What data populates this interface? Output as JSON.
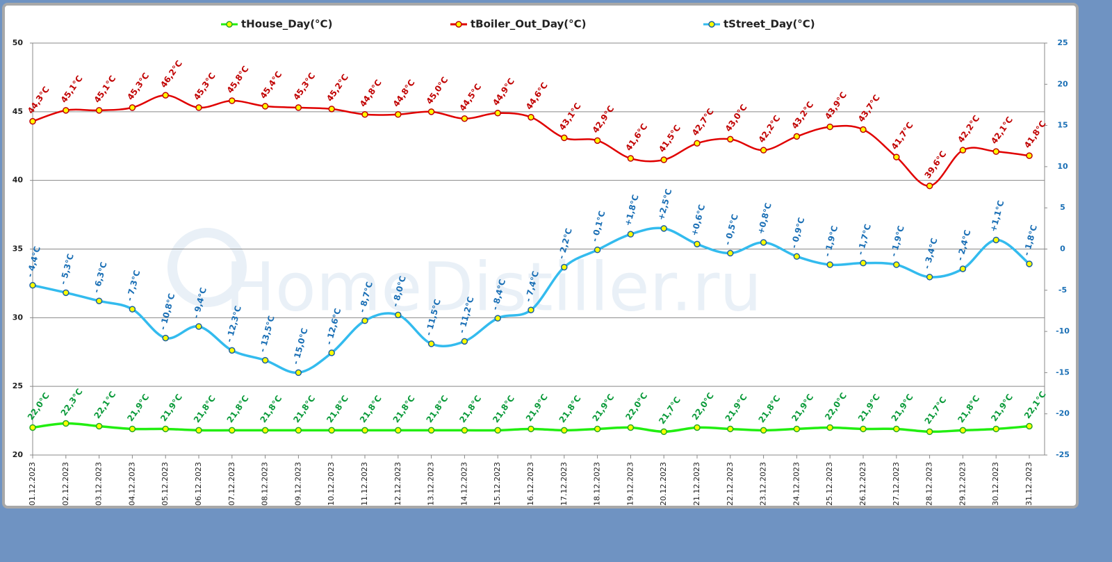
{
  "chart_data": {
    "type": "line",
    "watermark": "HomeDistiller.ru",
    "categories": [
      "01.12.2023",
      "02.12.2023",
      "03.12.2023",
      "04.12.2023",
      "05.12.2023",
      "06.12.2023",
      "07.12.2023",
      "08.12.2023",
      "09.12.2023",
      "10.12.2023",
      "11.12.2023",
      "12.12.2023",
      "13.12.2023",
      "14.12.2023",
      "15.12.2023",
      "16.12.2023",
      "17.12.2023",
      "18.12.2023",
      "19.12.2023",
      "20.12.2023",
      "21.12.2023",
      "22.12.2023",
      "23.12.2023",
      "24.12.2023",
      "25.12.2023",
      "26.12.2023",
      "27.12.2023",
      "28.12.2023",
      "29.12.2023",
      "30.12.2023",
      "31.12.2023"
    ],
    "ylim": [
      20,
      50
    ],
    "yticks": [
      20,
      25,
      30,
      35,
      40,
      45,
      50
    ],
    "y2lim": [
      -25,
      25
    ],
    "y2ticks": [
      -25,
      -20,
      -15,
      -10,
      -5,
      0,
      5,
      10,
      15,
      20,
      25
    ],
    "grid": true,
    "legend": "top",
    "series": [
      {
        "name": "tHouse_Day(°C)",
        "color": "#22ee11",
        "label_color": "#0a9a3a",
        "values": [
          22.0,
          22.3,
          22.1,
          21.9,
          21.9,
          21.8,
          21.8,
          21.8,
          21.8,
          21.8,
          21.8,
          21.8,
          21.8,
          21.8,
          21.8,
          21.9,
          21.8,
          21.9,
          22.0,
          21.7,
          22.0,
          21.9,
          21.8,
          21.9,
          22.0,
          21.9,
          21.9,
          21.7,
          21.8,
          21.9,
          22.1
        ],
        "value_labels": [
          "22,0°C",
          "22,3°C",
          "22,1°C",
          "21,9°C",
          "21,9°C",
          "21,8°C",
          "21,8°C",
          "21,8°C",
          "21,8°C",
          "21,8°C",
          "21,8°C",
          "21,8°C",
          "21,8°C",
          "21,8°C",
          "21,8°C",
          "21,9°C",
          "21,8°C",
          "21,9°C",
          "22,0°C",
          "21,7°C",
          "22,0°C",
          "21,9°C",
          "21,8°C",
          "21,9°C",
          "22,0°C",
          "21,9°C",
          "21,9°C",
          "21,7°C",
          "21,8°C",
          "21,9°C",
          "22,1°C"
        ]
      },
      {
        "name": "tBoiler_Out_Day(°C)",
        "color": "#e00000",
        "label_color": "#c00000",
        "values": [
          44.3,
          45.1,
          45.1,
          45.3,
          46.2,
          45.3,
          45.8,
          45.4,
          45.3,
          45.2,
          44.8,
          44.8,
          45.0,
          44.5,
          44.9,
          44.6,
          43.1,
          42.9,
          41.6,
          41.5,
          42.7,
          43.0,
          42.2,
          43.2,
          43.9,
          43.7,
          41.7,
          39.6,
          42.2,
          42.1,
          41.8
        ],
        "value_labels": [
          "44,3°C",
          "45,1°C",
          "45,1°C",
          "45,3°C",
          "46,2°C",
          "45,3°C",
          "45,8°C",
          "45,4°C",
          "45,3°C",
          "45,2°C",
          "44,8°C",
          "44,8°C",
          "45,0°C",
          "44,5°C",
          "44,9°C",
          "44,6°C",
          "43,1°C",
          "42,9°C",
          "41,6°C",
          "41,5°C",
          "42,7°C",
          "43,0°C",
          "42,2°C",
          "43,2°C",
          "43,9°C",
          "43,7°C",
          "41,7°C",
          "39,6°C",
          "42,2°C",
          "42,1°C",
          "41,8°C"
        ]
      },
      {
        "name": "tStreet_Day(°C)",
        "color": "#33bbee",
        "label_color": "#1a6fb5",
        "axis": "y2",
        "values": [
          -4.4,
          -5.3,
          -6.3,
          -7.3,
          -10.8,
          -9.4,
          -12.3,
          -13.5,
          -15.0,
          -12.6,
          -8.7,
          -8.0,
          -11.5,
          -11.2,
          -8.4,
          -7.4,
          -2.2,
          -0.1,
          1.8,
          2.5,
          0.6,
          -0.5,
          0.8,
          -0.9,
          -1.9,
          -1.7,
          -1.9,
          -3.4,
          -2.4,
          1.1,
          -1.8
        ],
        "value_labels": [
          "- 4,4°C",
          "- 5,3°C",
          "- 6,3°C",
          "- 7,3°C",
          "- 10,8°C",
          "- 9,4°C",
          "- 12,3°C",
          "- 13,5°C",
          "- 15,0°C",
          "- 12,6°C",
          "- 8,7°C",
          "- 8,0°C",
          "- 11,5°C",
          "- 11,2°C",
          "- 8,4°C",
          "- 7,4°C",
          "- 2,2°C",
          "- 0,1°C",
          "+1,8°C",
          "+2,5°C",
          "+0,6°C",
          "- 0,5°C",
          "+0,8°C",
          "- 0,9°C",
          "- 1,9°C",
          "- 1,7°C",
          "- 1,9°C",
          "- 3,4°C",
          "- 2,4°C",
          "+1,1°C",
          "- 1,8°C"
        ]
      }
    ]
  }
}
